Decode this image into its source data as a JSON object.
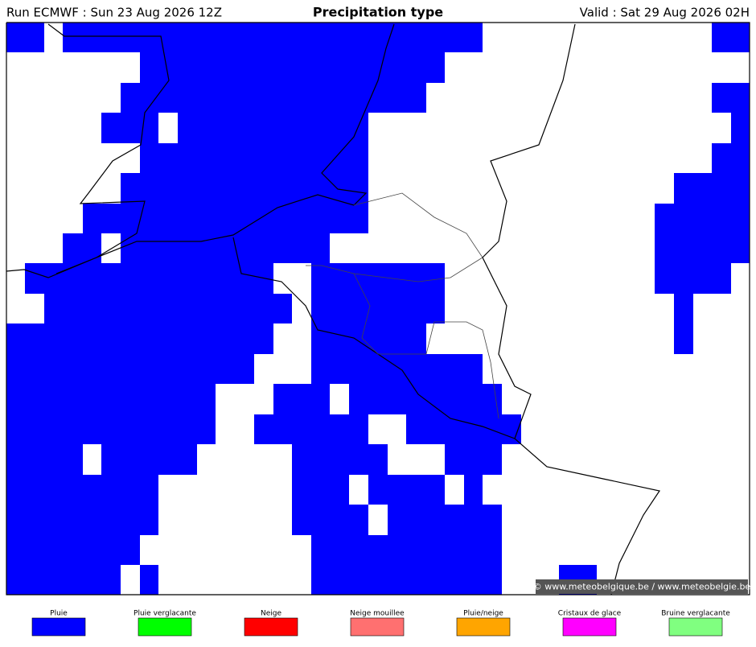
{
  "header": {
    "run": "Run ECMWF : Sun 23 Aug 2026 12Z",
    "title": "Precipitation type",
    "valid": "Valid : Sat 29 Aug 2026 02H"
  },
  "credit": "© www.meteobelgique.be / www.meteobelgie.be",
  "legend": [
    {
      "label": "Pluie",
      "color": "#0000ff"
    },
    {
      "label": "Pluie verglacante",
      "color": "#00ff00"
    },
    {
      "label": "Neige",
      "color": "#ff0000"
    },
    {
      "label": "Neige mouillee",
      "color": "#ff7070"
    },
    {
      "label": "Pluie/neige",
      "color": "#ffa500"
    },
    {
      "label": "Cristaux de glace",
      "color": "#ff00ff"
    },
    {
      "label": "Bruine verglacante",
      "color": "#80ff80"
    }
  ]
}
